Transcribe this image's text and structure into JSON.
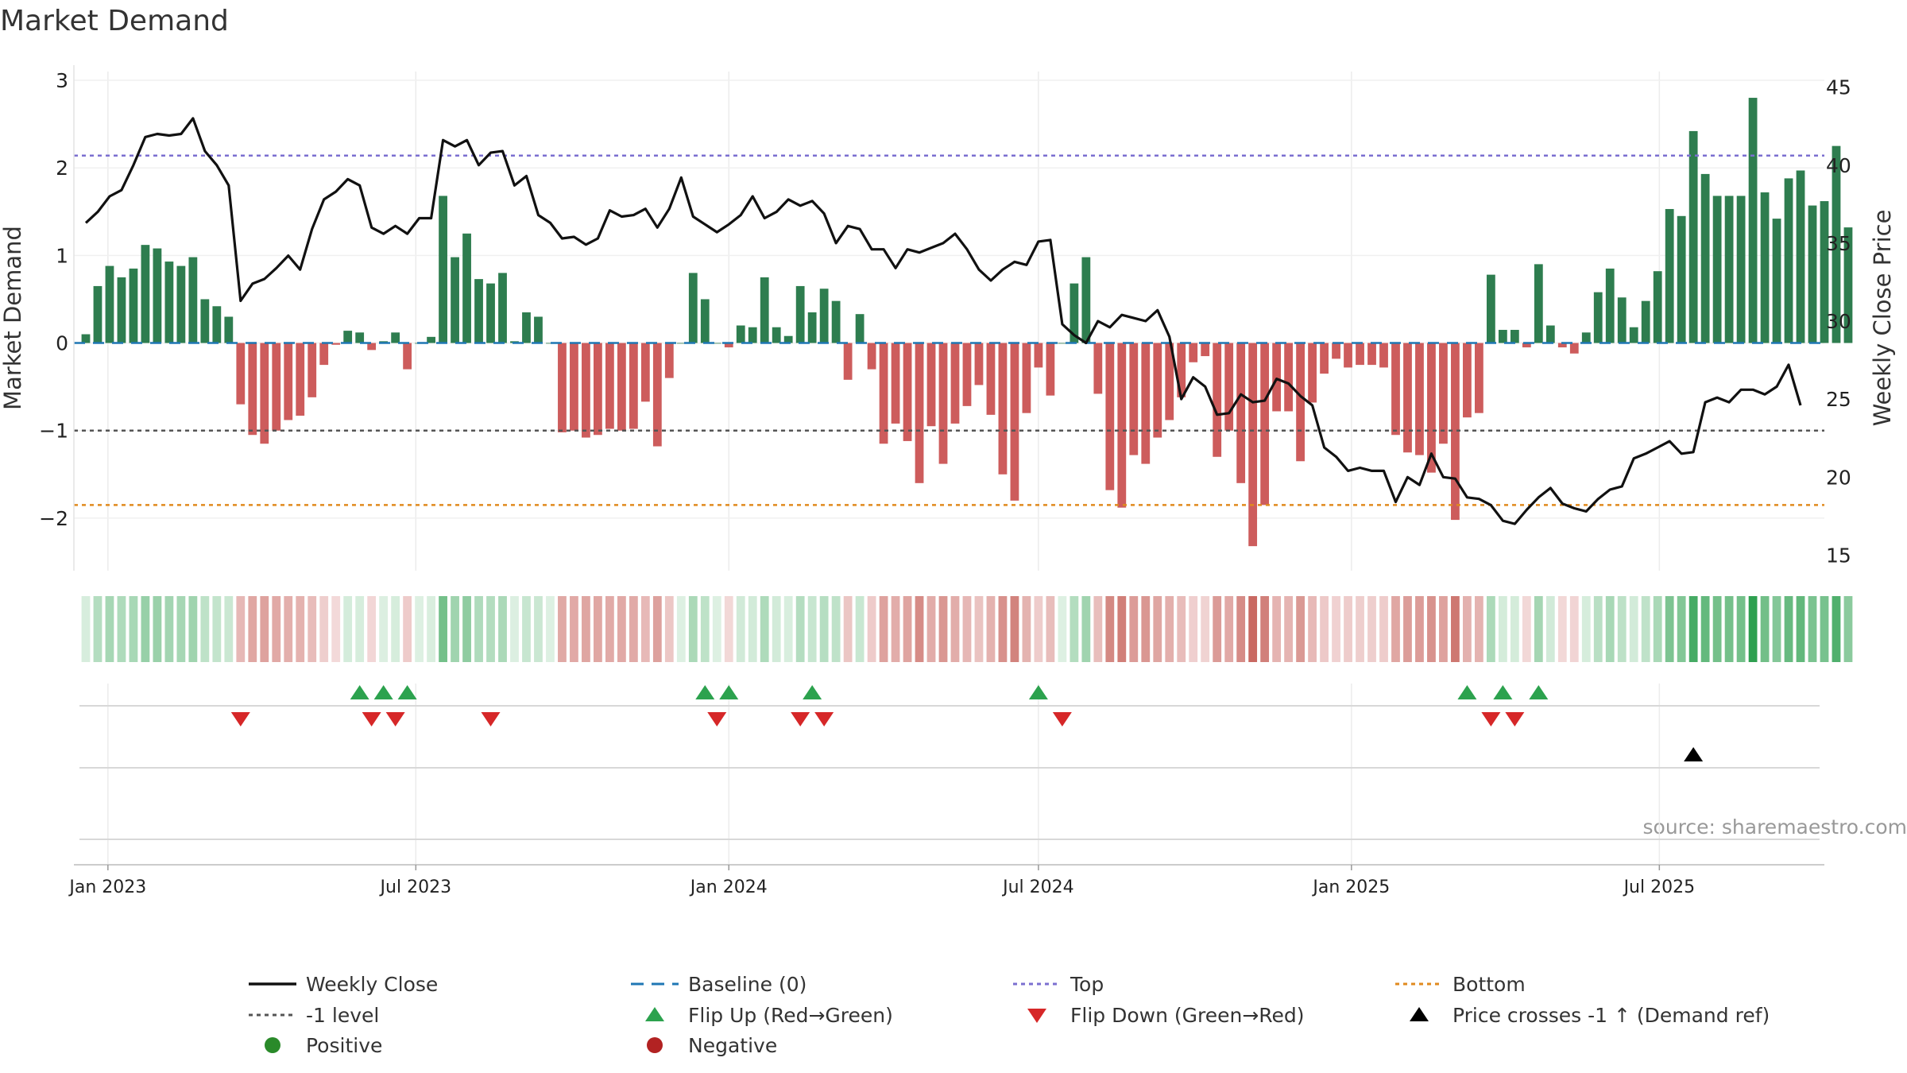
{
  "chart_data": {
    "type": "bar",
    "title": "Market Demand",
    "ylabel_left": "Market Demand",
    "ylabel_right": "Weekly Close Price",
    "xlabel": "",
    "ylim_left": [
      -2.6,
      3.1
    ],
    "ylim_right": [
      14,
      46
    ],
    "yticks_left": [
      3,
      2,
      1,
      0,
      -1,
      -2
    ],
    "ytick_labels_left": [
      "3",
      "2",
      "1",
      "0",
      "−1",
      "−2"
    ],
    "yticks_right": [
      45,
      40,
      35,
      30,
      25,
      20,
      15
    ],
    "ytick_labels_right": [
      "45",
      "40",
      "35",
      "30",
      "25",
      "20",
      "15"
    ],
    "x_range": [
      "2022-12-12",
      "2025-10-06"
    ],
    "xtick_dates": [
      "2023-01-01",
      "2023-07-01",
      "2024-01-01",
      "2024-07-01",
      "2025-01-01",
      "2025-07-01"
    ],
    "xtick_labels": [
      "Jan 2023",
      "Jul 2023",
      "Jan 2024",
      "Jul 2024",
      "Jan 2025",
      "Jul 2025"
    ],
    "start_date": "2022-12-19",
    "week_step_days": 7,
    "reference_lines": {
      "top": 2.14,
      "minus_one": -1,
      "bottom": -1.85,
      "baseline": 0
    },
    "colors": {
      "positive": "#2e7d4f",
      "negative": "#cd5c5c",
      "top": "#7b6fd0",
      "minus_one": "#555555",
      "bottom": "#e08a1e",
      "baseline": "#1f77b4",
      "flip_up": "#2ca24e",
      "flip_down": "#d62728",
      "price_cross": "#000000",
      "close": "#111111"
    },
    "demand": [
      0.1,
      0.65,
      0.88,
      0.75,
      0.85,
      1.12,
      1.08,
      0.93,
      0.88,
      0.98,
      0.5,
      0.42,
      0.3,
      -0.7,
      -1.05,
      -1.15,
      -1.0,
      -0.88,
      -0.83,
      -0.62,
      -0.25,
      -0.02,
      0.14,
      0.12,
      -0.08,
      0.02,
      0.12,
      -0.3,
      0.0,
      0.07,
      1.68,
      0.98,
      1.25,
      0.73,
      0.68,
      0.8,
      0.02,
      0.35,
      0.3,
      0.0,
      -1.02,
      -1.0,
      -1.08,
      -1.05,
      -0.98,
      -1.0,
      -0.98,
      -0.67,
      -1.18,
      -0.4,
      0.0,
      0.8,
      0.5,
      0.0,
      -0.05,
      0.2,
      0.18,
      0.75,
      0.18,
      0.08,
      0.65,
      0.35,
      0.62,
      0.48,
      -0.42,
      0.33,
      -0.3,
      -1.15,
      -0.92,
      -1.12,
      -1.6,
      -0.95,
      -1.38,
      -0.92,
      -0.72,
      -0.48,
      -0.82,
      -1.5,
      -1.8,
      -0.8,
      -0.28,
      -0.6,
      0.0,
      0.68,
      0.98,
      -0.58,
      -1.68,
      -1.88,
      -1.28,
      -1.38,
      -1.08,
      -0.88,
      -0.62,
      -0.22,
      -0.15,
      -1.3,
      -1.0,
      -1.6,
      -2.32,
      -1.85,
      -0.78,
      -0.78,
      -1.35,
      -0.68,
      -0.35,
      -0.18,
      -0.28,
      -0.25,
      -0.25,
      -0.28,
      -1.05,
      -1.25,
      -1.28,
      -1.48,
      -1.15,
      -2.02,
      -0.85,
      -0.8,
      0.78,
      0.15,
      0.15,
      -0.05,
      0.9,
      0.2,
      -0.05,
      -0.12,
      0.12,
      0.58,
      0.85,
      0.52,
      0.18,
      0.48,
      0.82,
      1.53,
      1.45,
      2.42,
      1.93,
      1.68,
      1.68,
      1.68,
      2.8,
      1.72,
      1.42,
      1.88,
      1.97,
      1.57,
      1.62,
      2.25,
      1.32
    ],
    "close": [
      36.3,
      37.0,
      38.0,
      38.4,
      40.0,
      41.8,
      42.0,
      41.9,
      42.0,
      43.0,
      40.9,
      40.0,
      38.7,
      31.3,
      32.4,
      32.7,
      33.4,
      34.2,
      33.3,
      35.9,
      37.8,
      38.3,
      39.1,
      38.7,
      36.0,
      35.6,
      36.1,
      35.6,
      36.6,
      36.6,
      41.6,
      41.2,
      41.6,
      40.0,
      40.8,
      40.9,
      38.7,
      39.3,
      36.8,
      36.3,
      35.3,
      35.4,
      34.9,
      35.3,
      37.1,
      36.7,
      36.8,
      37.2,
      36.0,
      37.2,
      39.2,
      36.7,
      36.2,
      35.7,
      36.2,
      36.8,
      38.0,
      36.6,
      37.0,
      37.8,
      37.4,
      37.7,
      36.9,
      35.0,
      36.1,
      35.9,
      34.6,
      34.6,
      33.4,
      34.6,
      34.4,
      34.7,
      35.0,
      35.6,
      34.6,
      33.3,
      32.6,
      33.3,
      33.8,
      33.6,
      35.1,
      35.2,
      29.8,
      29.1,
      28.6,
      30.0,
      29.6,
      30.4,
      30.2,
      30.0,
      30.7,
      29.0,
      25.0,
      26.4,
      25.8,
      24.0,
      24.1,
      25.3,
      24.8,
      24.9,
      26.3,
      26.0,
      25.2,
      24.6,
      21.9,
      21.3,
      20.4,
      20.6,
      20.4,
      20.4,
      18.4,
      20.0,
      19.5,
      21.5,
      20.0,
      19.9,
      18.7,
      18.6,
      18.2,
      17.2,
      17.0,
      17.9,
      18.7,
      19.3,
      18.3,
      18.0,
      17.8,
      18.6,
      19.2,
      19.4,
      21.2,
      21.5,
      21.9,
      22.3,
      21.5,
      21.6,
      24.8,
      25.1,
      24.8,
      25.6,
      25.6,
      25.3,
      25.8,
      27.2,
      24.6
    ],
    "flip_up_dates": [
      "2023-05-29",
      "2023-06-12",
      "2023-06-26",
      "2023-12-18",
      "2024-01-01",
      "2024-02-19",
      "2024-07-01",
      "2025-03-10",
      "2025-03-31",
      "2025-04-21"
    ],
    "flip_down_dates": [
      "2023-03-20",
      "2023-06-05",
      "2023-06-19",
      "2023-08-14",
      "2023-12-25",
      "2024-02-12",
      "2024-02-26",
      "2024-07-15",
      "2025-03-24",
      "2025-04-07"
    ],
    "price_cross_dates": [
      "2025-07-21"
    ],
    "source_text": "source: sharemaestro.com",
    "legend": [
      {
        "label": "Weekly Close",
        "kind": "solid-line",
        "color": "#111111"
      },
      {
        "label": "Baseline (0)",
        "kind": "dash-line",
        "color": "#1f77b4"
      },
      {
        "label": "Top",
        "kind": "dot-line",
        "color": "#7b6fd0"
      },
      {
        "label": "Bottom",
        "kind": "dot-line",
        "color": "#e08a1e"
      },
      {
        "label": "-1 level",
        "kind": "dot-line",
        "color": "#555555"
      },
      {
        "label": "Flip Up (Red→Green)",
        "kind": "tri-up",
        "color": "#2ca24e"
      },
      {
        "label": "Flip Down (Green→Red)",
        "kind": "tri-down",
        "color": "#d62728"
      },
      {
        "label": "Price crosses -1 ↑ (Demand ref)",
        "kind": "tri-up",
        "color": "#000000"
      },
      {
        "label": "Positive",
        "kind": "dot",
        "color": "#2a8a2a"
      },
      {
        "label": "Negative",
        "kind": "dot",
        "color": "#b22222"
      }
    ]
  }
}
